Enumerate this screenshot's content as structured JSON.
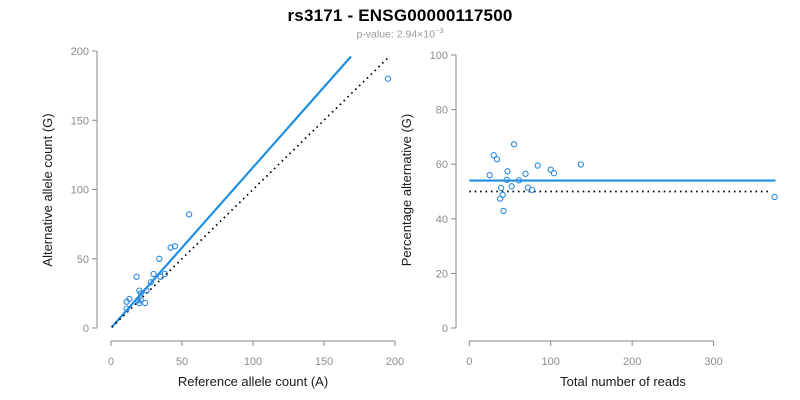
{
  "title": "rs3171 - ENSG00000117500",
  "subtitle": {
    "label": "p-value:",
    "value": "2.94×10",
    "exponent": "−3"
  },
  "colors": {
    "accent_blue": "#1E8FE3",
    "point_blue": "#2A88DD",
    "dotted_black": "#000000",
    "axis_gray": "#888888",
    "tick_label_gray": "#8c8c8c",
    "axis_title_color": "#1a1a1a",
    "subtitle_gray": "#999999",
    "background": "#ffffff"
  },
  "chart_data": [
    {
      "type": "scatter",
      "name": "allele-counts-plot",
      "xlabel": "Reference allele count (A)",
      "ylabel": "Alternative allele count (G)",
      "xlim": [
        0,
        200
      ],
      "ylim": [
        0,
        200
      ],
      "xticks": [
        0,
        50,
        100,
        150,
        200
      ],
      "yticks": [
        0,
        50,
        100,
        150,
        200
      ],
      "grid": false,
      "legend": false,
      "points": [
        [
          11,
          14
        ],
        [
          11,
          19
        ],
        [
          13,
          21
        ],
        [
          20,
          18
        ],
        [
          19,
          20
        ],
        [
          21,
          20
        ],
        [
          24,
          18
        ],
        [
          21,
          25
        ],
        [
          20,
          27
        ],
        [
          25,
          27
        ],
        [
          18,
          37
        ],
        [
          28,
          33
        ],
        [
          30,
          39
        ],
        [
          35,
          37
        ],
        [
          38,
          39
        ],
        [
          34,
          50
        ],
        [
          42,
          58
        ],
        [
          45,
          59
        ],
        [
          55,
          82
        ],
        [
          195,
          180
        ]
      ],
      "lines": [
        {
          "name": "regression-line",
          "x1": 0.5,
          "y1": 0.6,
          "x2": 169,
          "y2": 196,
          "style": "solid",
          "color": "accent"
        },
        {
          "name": "identity-line",
          "x1": 0.5,
          "y1": 0.5,
          "x2": 196,
          "y2": 196,
          "style": "dotted",
          "color": "black"
        }
      ]
    },
    {
      "type": "scatter",
      "name": "percentage-alternative-plot",
      "xlabel": "Total number of reads",
      "ylabel": "Percentage alternative (G)",
      "xlim": [
        0,
        375
      ],
      "ylim": [
        0,
        100
      ],
      "xticks": [
        0,
        100,
        200,
        300
      ],
      "yticks": [
        0,
        20,
        40,
        60,
        80,
        100
      ],
      "grid": false,
      "legend": false,
      "points": [
        [
          25,
          56
        ],
        [
          30,
          63.3
        ],
        [
          34,
          61.8
        ],
        [
          38,
          47.4
        ],
        [
          39,
          51.3
        ],
        [
          41,
          48.8
        ],
        [
          42,
          42.9
        ],
        [
          46,
          54.3
        ],
        [
          47,
          57.4
        ],
        [
          52,
          51.9
        ],
        [
          55,
          67.3
        ],
        [
          61,
          54.1
        ],
        [
          69,
          56.5
        ],
        [
          72,
          51.4
        ],
        [
          77,
          50.6
        ],
        [
          84,
          59.5
        ],
        [
          100,
          58
        ],
        [
          104,
          56.7
        ],
        [
          137,
          59.9
        ],
        [
          375,
          48
        ]
      ],
      "lines": [
        {
          "name": "mean-percentage-line",
          "x1": 0,
          "y1": 54,
          "x2": 376,
          "y2": 54,
          "style": "solid",
          "color": "accent"
        },
        {
          "name": "reference-50-line",
          "x1": 0,
          "y1": 50,
          "x2": 371,
          "y2": 50,
          "style": "dotted",
          "color": "black"
        }
      ]
    }
  ]
}
